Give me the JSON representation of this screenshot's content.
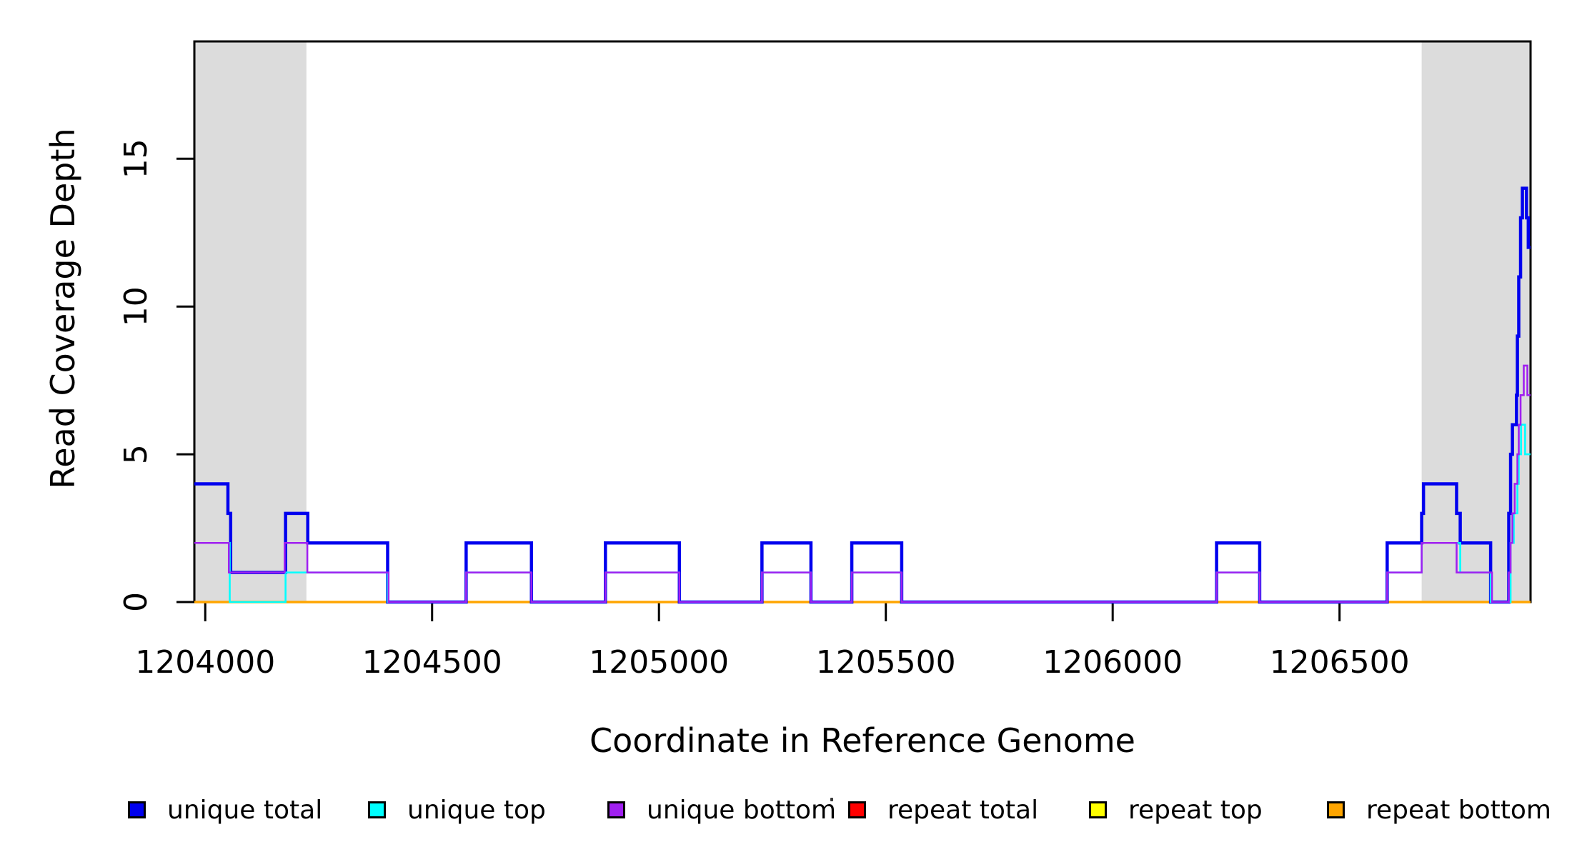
{
  "chart_data": {
    "type": "step-line",
    "title": "",
    "xlabel": "Coordinate in Reference Genome",
    "ylabel": "Read Coverage Depth",
    "xlim": [
      1203976,
      1206921
    ],
    "ylim": [
      0,
      18.97
    ],
    "x_ticks": [
      1204000,
      1204500,
      1205000,
      1205500,
      1206000,
      1206500
    ],
    "y_ticks": [
      0,
      5,
      10,
      15
    ],
    "grid": false,
    "legend_position": "bottom",
    "shade_color": "#DCDCDC",
    "shaded_regions": [
      {
        "x0": 1203976,
        "x1": 1204223
      },
      {
        "x0": 1206681,
        "x1": 1206921
      }
    ],
    "series": [
      {
        "name": "repeat total",
        "color": "#FF0000",
        "width": 3,
        "steps": [
          [
            1203976,
            0
          ]
        ]
      },
      {
        "name": "repeat top",
        "color": "#FFFF00",
        "width": 3,
        "steps": [
          [
            1203976,
            0
          ]
        ]
      },
      {
        "name": "repeat bottom",
        "color": "#FFA500",
        "width": 3.5,
        "steps": [
          [
            1203976,
            0
          ]
        ]
      },
      {
        "name": "unique total",
        "color": "#0000EE",
        "width": 4.5,
        "steps": [
          [
            1203976,
            4
          ],
          [
            1204050,
            3
          ],
          [
            1204056,
            1
          ],
          [
            1204177,
            3
          ],
          [
            1204226,
            2
          ],
          [
            1204402,
            0
          ],
          [
            1204575,
            2
          ],
          [
            1204719,
            0
          ],
          [
            1204882,
            2
          ],
          [
            1205045,
            0
          ],
          [
            1205227,
            2
          ],
          [
            1205335,
            0
          ],
          [
            1205425,
            2
          ],
          [
            1205535,
            0
          ],
          [
            1206229,
            2
          ],
          [
            1206324,
            0
          ],
          [
            1206605,
            2
          ],
          [
            1206681,
            3
          ],
          [
            1206685,
            4
          ],
          [
            1206758,
            3
          ],
          [
            1206766,
            2
          ],
          [
            1206833,
            0
          ],
          [
            1206873,
            3
          ],
          [
            1206877,
            5
          ],
          [
            1206881,
            6
          ],
          [
            1206890,
            7
          ],
          [
            1206892,
            9
          ],
          [
            1206895,
            11
          ],
          [
            1206899,
            13
          ],
          [
            1206903,
            14
          ],
          [
            1206912,
            13
          ],
          [
            1206916,
            12
          ]
        ]
      },
      {
        "name": "unique top",
        "color": "#00FFFF",
        "width": 2.6,
        "steps": [
          [
            1203976,
            2
          ],
          [
            1204054,
            0
          ],
          [
            1204177,
            1
          ],
          [
            1204402,
            0
          ],
          [
            1204575,
            1
          ],
          [
            1204719,
            0
          ],
          [
            1204882,
            1
          ],
          [
            1205045,
            0
          ],
          [
            1205227,
            1
          ],
          [
            1205335,
            0
          ],
          [
            1205425,
            1
          ],
          [
            1205535,
            0
          ],
          [
            1206229,
            1
          ],
          [
            1206324,
            0
          ],
          [
            1206605,
            1
          ],
          [
            1206681,
            2
          ],
          [
            1206766,
            1
          ],
          [
            1206833,
            0
          ],
          [
            1206877,
            2
          ],
          [
            1206884,
            3
          ],
          [
            1206892,
            4
          ],
          [
            1206895,
            5
          ],
          [
            1206900,
            6
          ],
          [
            1206909,
            5
          ]
        ]
      },
      {
        "name": "unique bottom",
        "color": "#A020F0",
        "width": 2.6,
        "steps": [
          [
            1203976,
            2
          ],
          [
            1204052,
            1
          ],
          [
            1204175,
            2
          ],
          [
            1204225,
            1
          ],
          [
            1204404,
            0
          ],
          [
            1204575,
            1
          ],
          [
            1204719,
            0
          ],
          [
            1204882,
            1
          ],
          [
            1205045,
            0
          ],
          [
            1205227,
            1
          ],
          [
            1205335,
            0
          ],
          [
            1205425,
            1
          ],
          [
            1205535,
            0
          ],
          [
            1206229,
            1
          ],
          [
            1206324,
            0
          ],
          [
            1206605,
            1
          ],
          [
            1206681,
            2
          ],
          [
            1206758,
            1
          ],
          [
            1206836,
            0
          ],
          [
            1206873,
            1
          ],
          [
            1206877,
            2
          ],
          [
            1206881,
            3
          ],
          [
            1206886,
            4
          ],
          [
            1206892,
            5
          ],
          [
            1206895,
            6
          ],
          [
            1206899,
            7
          ],
          [
            1206906,
            8
          ],
          [
            1206914,
            7
          ]
        ]
      }
    ]
  },
  "legend": {
    "items": [
      {
        "label": "unique total",
        "color": "#0000EE"
      },
      {
        "label": "unique top",
        "color": "#00FFFF"
      },
      {
        "label": "unique bottom",
        "color": "#A020F0"
      },
      {
        "label": "repeat total",
        "color": "#FF0000"
      },
      {
        "label": "repeat top",
        "color": "#FFFF00"
      },
      {
        "label": "repeat bottom",
        "color": "#FFA500"
      }
    ]
  }
}
